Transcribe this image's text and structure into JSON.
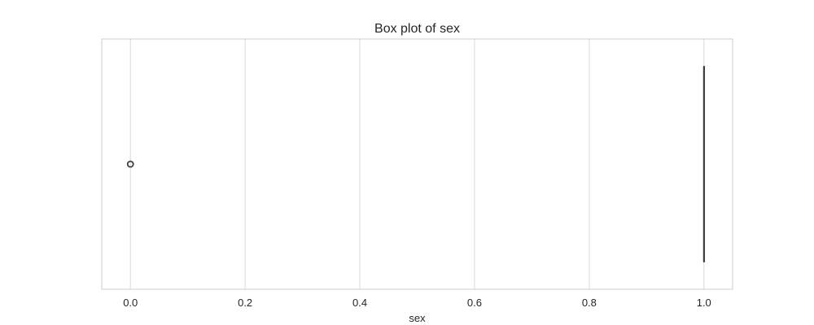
{
  "chart_data": {
    "type": "box",
    "title": "Box plot of sex",
    "xlabel": "sex",
    "ylabel": "",
    "orientation": "horizontal",
    "xlim": [
      -0.05,
      1.05
    ],
    "xticks": [
      0.0,
      0.2,
      0.4,
      0.6,
      0.8,
      1.0
    ],
    "xtick_labels": [
      "0.0",
      "0.2",
      "0.4",
      "0.6",
      "0.8",
      "1.0"
    ],
    "grid": true,
    "box": {
      "min": 1.0,
      "q1": 1.0,
      "median": 1.0,
      "q3": 1.0,
      "max": 1.0
    },
    "outliers": [
      0.0
    ],
    "colors": {
      "box_line": "#3f3f3f",
      "grid": "#d9d9d9",
      "frame": "#cccccc",
      "outlier": "#3f3f3f"
    }
  }
}
